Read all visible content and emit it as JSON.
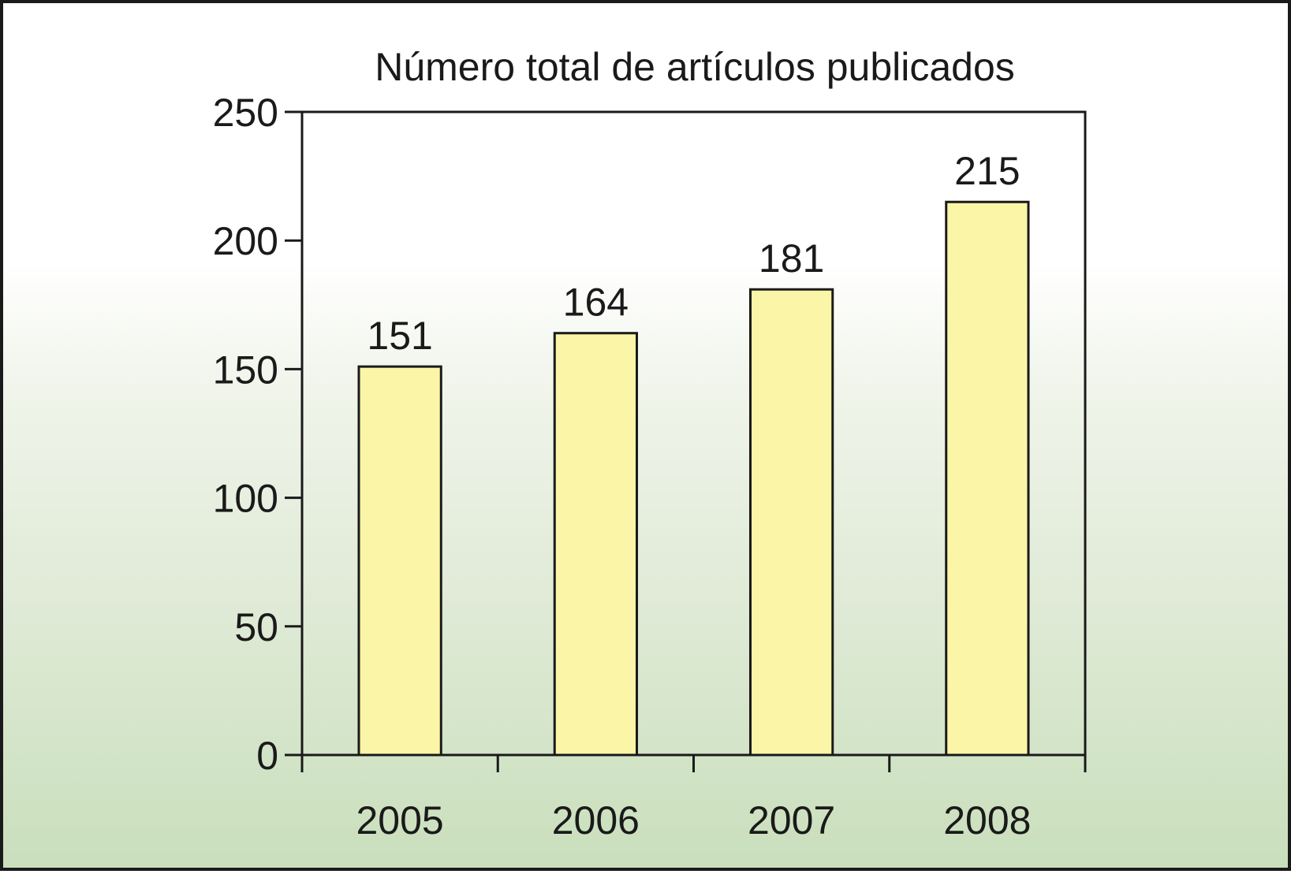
{
  "chart_data": {
    "type": "bar",
    "title": "Número total de artículos publicados",
    "categories": [
      "2005",
      "2006",
      "2007",
      "2008"
    ],
    "values": [
      151,
      164,
      181,
      215
    ],
    "data_labels": [
      "151",
      "164",
      "181",
      "215"
    ],
    "ylim": [
      0,
      250
    ],
    "yticks": [
      0,
      50,
      100,
      150,
      200,
      250
    ],
    "ytick_labels": [
      "0",
      "50",
      "100",
      "150",
      "200",
      "250"
    ],
    "xlabel": "",
    "ylabel": "",
    "grid": false,
    "colors": {
      "bar_fill": "#fbf5a8",
      "bar_stroke": "#1a1a1a",
      "axis": "#1a1a1a",
      "text": "#1a1a1a"
    }
  }
}
